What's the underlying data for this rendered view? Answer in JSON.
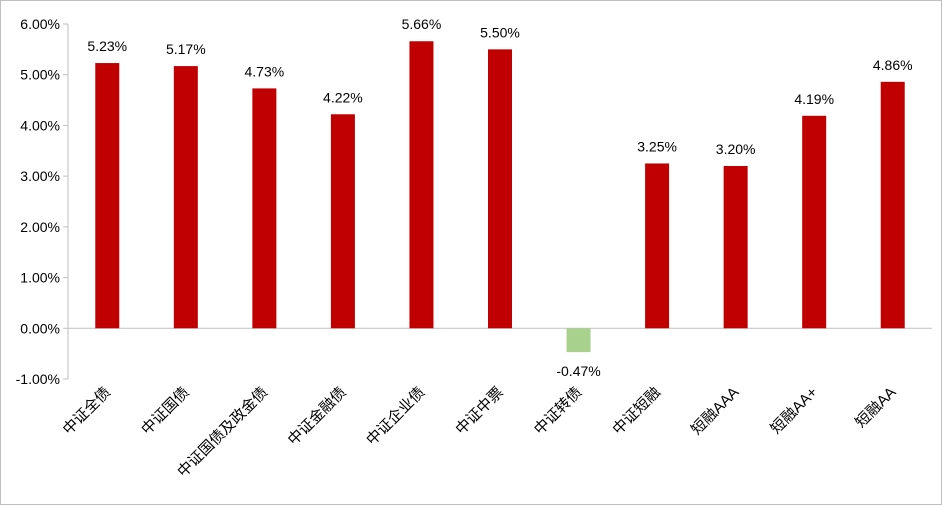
{
  "chart_data": {
    "type": "bar",
    "title": "",
    "xlabel": "",
    "ylabel": "",
    "categories": [
      "中证全债",
      "中证国债",
      "中证国债及政金债",
      "中证金融债",
      "中证企业债",
      "中证中票",
      "中证转债",
      "中证短融",
      "短融AAA",
      "短融AA+",
      "短融AA"
    ],
    "values": [
      5.23,
      5.17,
      4.73,
      4.22,
      5.66,
      5.5,
      -0.47,
      3.25,
      3.2,
      4.19,
      4.86
    ],
    "data_labels": [
      "5.23%",
      "5.17%",
      "4.73%",
      "4.22%",
      "5.66%",
      "5.50%",
      "-0.47%",
      "3.25%",
      "3.20%",
      "4.19%",
      "4.86%"
    ],
    "ylim": [
      -1,
      6
    ],
    "yticks": [
      -1,
      0,
      1,
      2,
      3,
      4,
      5,
      6
    ],
    "ytick_labels": [
      "-1.00%",
      "0.00%",
      "1.00%",
      "2.00%",
      "3.00%",
      "4.00%",
      "5.00%",
      "6.00%"
    ],
    "grid": false,
    "legend": "none",
    "colors": {
      "positive": "#C00000",
      "negative": "#A9D18E",
      "axis": "#BFBFBF"
    }
  }
}
